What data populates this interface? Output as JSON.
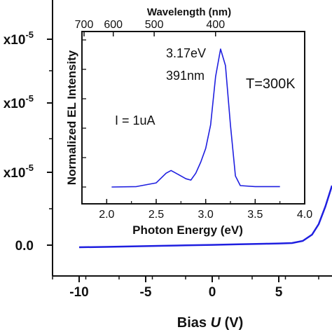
{
  "chart_data": [
    {
      "type": "line",
      "xlabel_prefix": "Bias ",
      "xlabel_var": "U",
      "xlabel_suffix": " (V)",
      "ylabel": "",
      "xlim": [
        -12,
        9
      ],
      "x_ticks": [
        {
          "value": -10,
          "label": "-10"
        },
        {
          "value": -5,
          "label": "-5"
        },
        {
          "value": 0,
          "label": "0"
        },
        {
          "value": 5,
          "label": "5"
        }
      ],
      "y_ticks": [
        {
          "value": 0.0,
          "label": "0.0"
        },
        {
          "value": 1e-06,
          "label": "x10",
          "exp": "-5"
        },
        {
          "value": 2e-06,
          "label": "x10",
          "exp": "-5"
        },
        {
          "value": 3e-06,
          "label": "x10",
          "exp": "-5"
        }
      ],
      "series": [
        {
          "color": "#1f1fe0",
          "points": [
            [
              -10,
              -0.03
            ],
            [
              -8,
              -0.025
            ],
            [
              -6,
              -0.018
            ],
            [
              -4,
              -0.01
            ],
            [
              -2,
              -0.003
            ],
            [
              0,
              0.004
            ],
            [
              2,
              0.012
            ],
            [
              4,
              0.02
            ],
            [
              5,
              0.024
            ],
            [
              6,
              0.03
            ],
            [
              6.8,
              0.06
            ],
            [
              7.5,
              0.15
            ],
            [
              8.0,
              0.3
            ],
            [
              8.5,
              0.55
            ],
            [
              9.0,
              0.85
            ]
          ]
        }
      ]
    },
    {
      "type": "line",
      "xlabel": "Photon Energy (eV)",
      "ylabel": "Normalized EL Intensity",
      "top_axis_label": "Wavelength (nm)",
      "xlim": [
        1.75,
        4.0
      ],
      "x_ticks": [
        "2.0",
        "2.5",
        "3.0",
        "3.5",
        "4.0"
      ],
      "top_ticks": [
        "700",
        "600",
        "500",
        "400"
      ],
      "top_tick_nm": [
        700,
        600,
        500,
        400
      ],
      "annotations": {
        "peak_energy": "3.17eV",
        "peak_wavelength": "391nm",
        "temperature": "T=300K",
        "current": "I = 1uA"
      },
      "series": [
        {
          "color": "#1f1fe0",
          "points": [
            [
              2.05,
              0.0
            ],
            [
              2.3,
              0.003
            ],
            [
              2.5,
              0.03
            ],
            [
              2.6,
              0.1
            ],
            [
              2.65,
              0.12
            ],
            [
              2.7,
              0.1
            ],
            [
              2.75,
              0.08
            ],
            [
              2.8,
              0.06
            ],
            [
              2.85,
              0.05
            ],
            [
              2.9,
              0.1
            ],
            [
              2.95,
              0.18
            ],
            [
              3.0,
              0.28
            ],
            [
              3.05,
              0.45
            ],
            [
              3.1,
              0.8
            ],
            [
              3.15,
              1.0
            ],
            [
              3.2,
              0.88
            ],
            [
              3.25,
              0.45
            ],
            [
              3.3,
              0.08
            ],
            [
              3.35,
              0.01
            ],
            [
              3.5,
              0.003
            ],
            [
              3.75,
              0.003
            ]
          ]
        }
      ]
    }
  ]
}
